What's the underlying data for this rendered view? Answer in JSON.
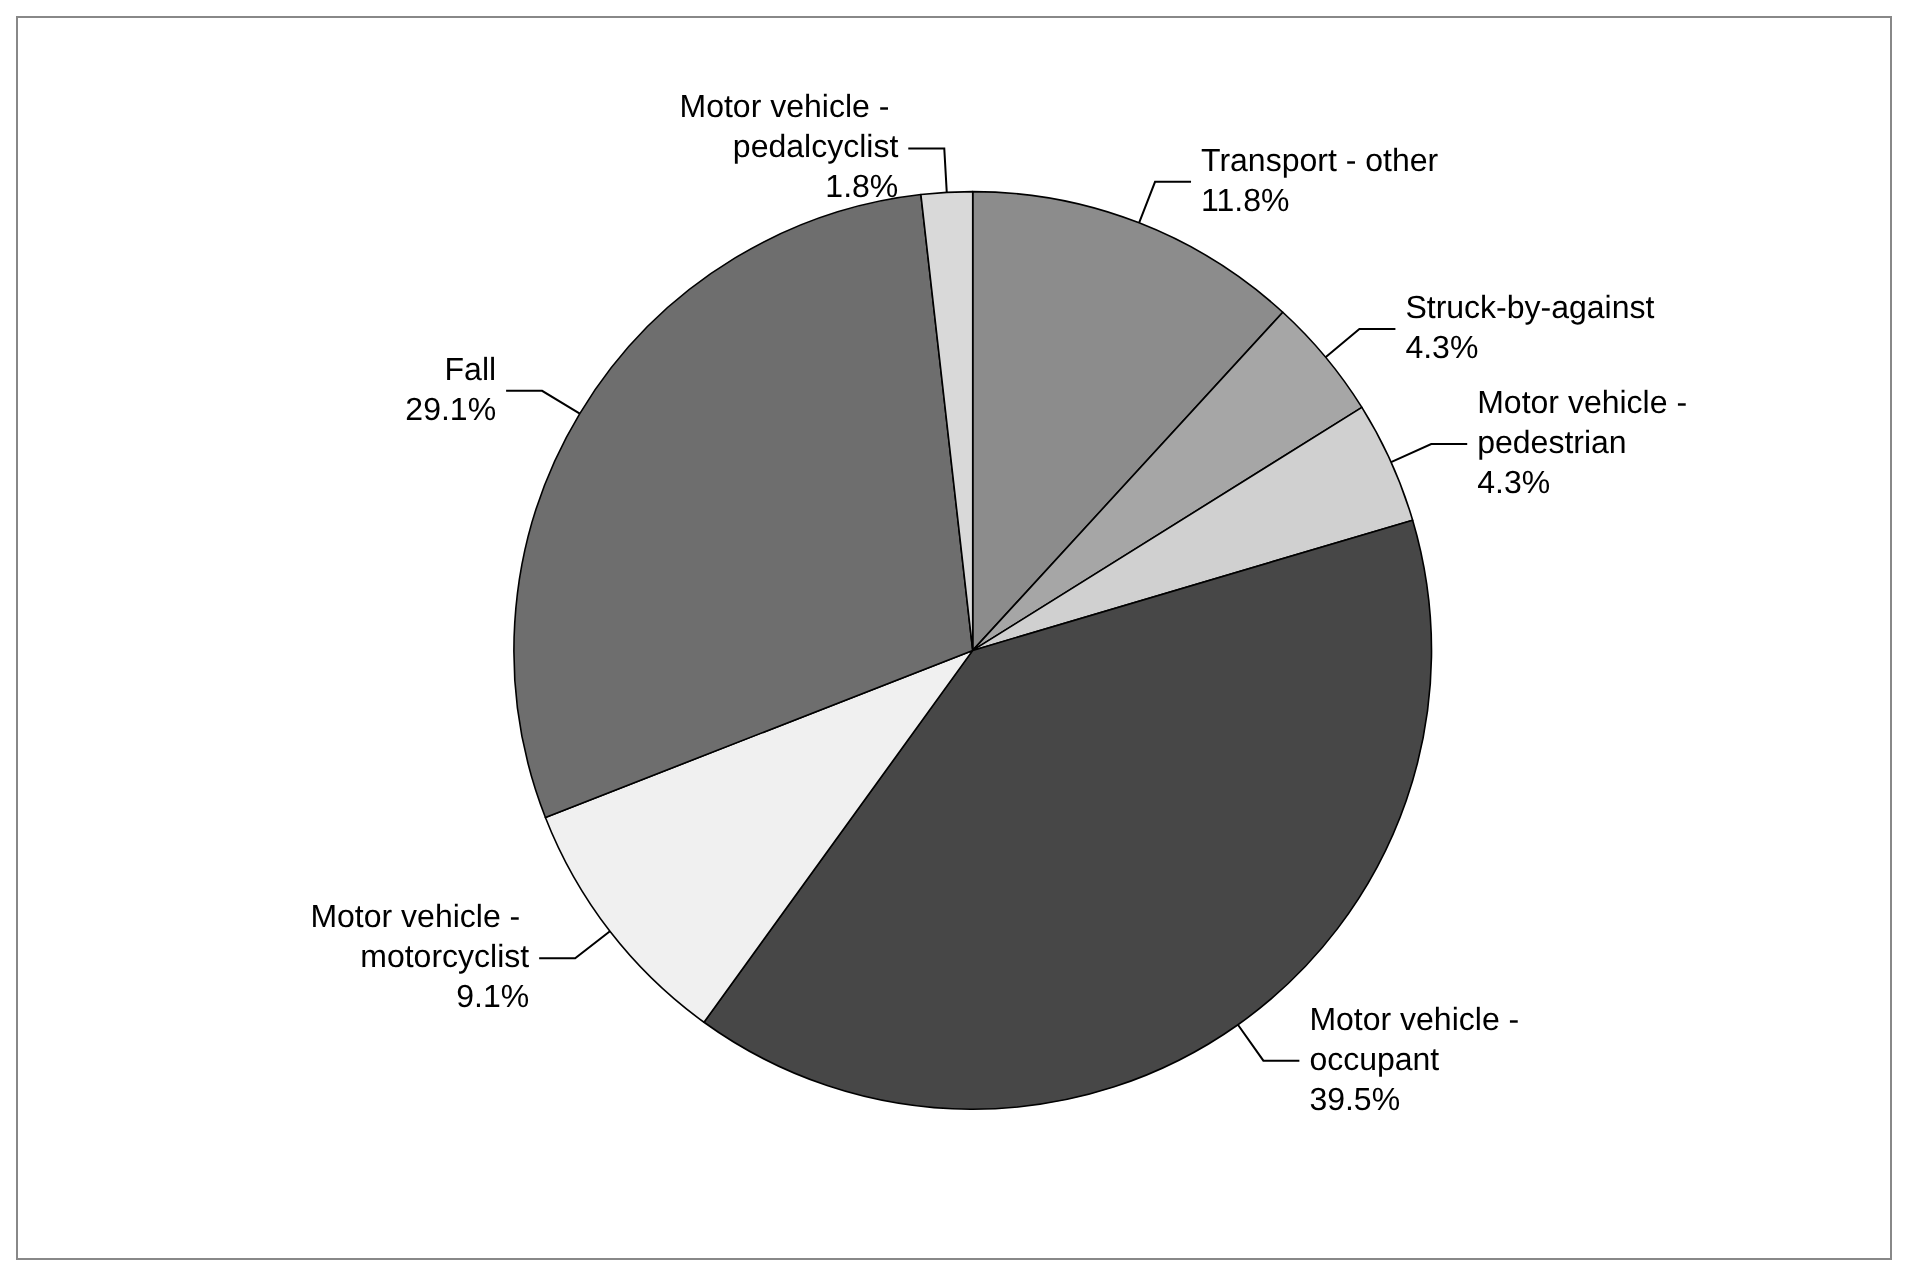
{
  "chart_data": {
    "type": "pie",
    "categories": [
      "Transport - other",
      "Struck-by-against",
      "Motor vehicle - pedestrian",
      "Motor vehicle - occupant",
      "Motor vehicle - motorcyclist",
      "Fall",
      "Motor vehicle - pedalcyclist"
    ],
    "values": [
      11.8,
      4.3,
      4.3,
      39.5,
      9.1,
      29.1,
      1.8
    ],
    "colors": [
      "#8c8c8c",
      "#a6a6a6",
      "#d0d0d0",
      "#474747",
      "#f0f0f0",
      "#6e6e6e",
      "#d9d9d9"
    ],
    "value_labels": [
      "11.8%",
      "4.3%",
      "4.3%",
      "39.5%",
      "9.1%",
      "29.1%",
      "1.8%"
    ],
    "legend": false
  }
}
